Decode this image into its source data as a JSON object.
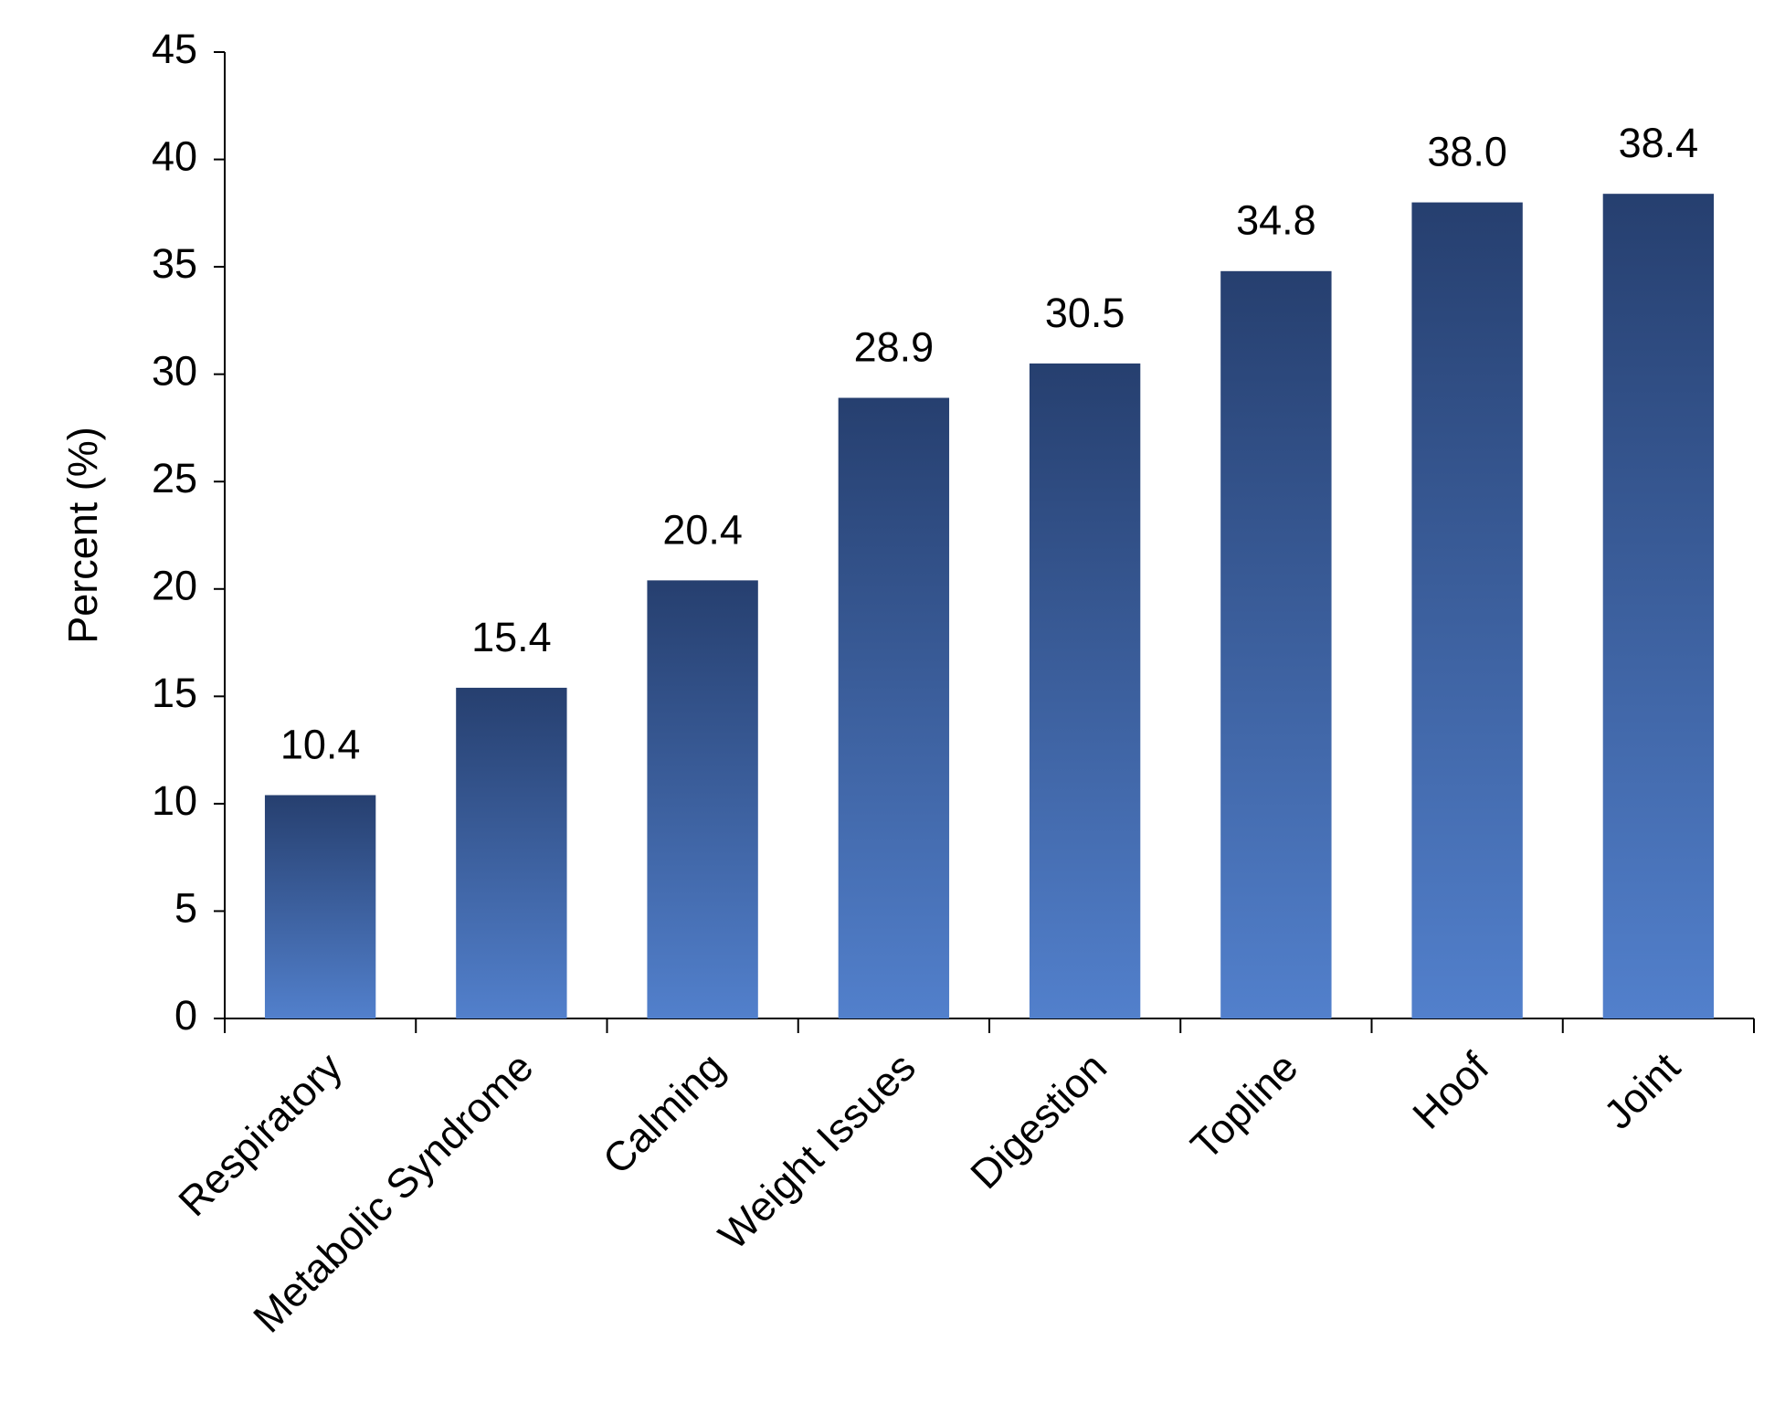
{
  "chart_data": {
    "type": "bar",
    "y_label": "Percent (%)",
    "categories": [
      "Respiratory",
      "Metabolic Syndrome",
      "Calming",
      "Weight Issues",
      "Digestion",
      "Topline",
      "Hoof",
      "Joint"
    ],
    "values": [
      10.4,
      15.4,
      20.4,
      28.9,
      30.5,
      34.8,
      38.0,
      38.4
    ],
    "value_labels": [
      "10.4",
      "15.4",
      "20.4",
      "28.9",
      "30.5",
      "34.8",
      "38.0",
      "38.4"
    ],
    "color": [
      "#263f6f",
      "#5280cc"
    ],
    "ylim": [
      0,
      45
    ],
    "yticks": [
      0,
      5,
      10,
      15,
      20,
      25,
      30,
      35,
      40,
      45
    ],
    "grid": false
  }
}
